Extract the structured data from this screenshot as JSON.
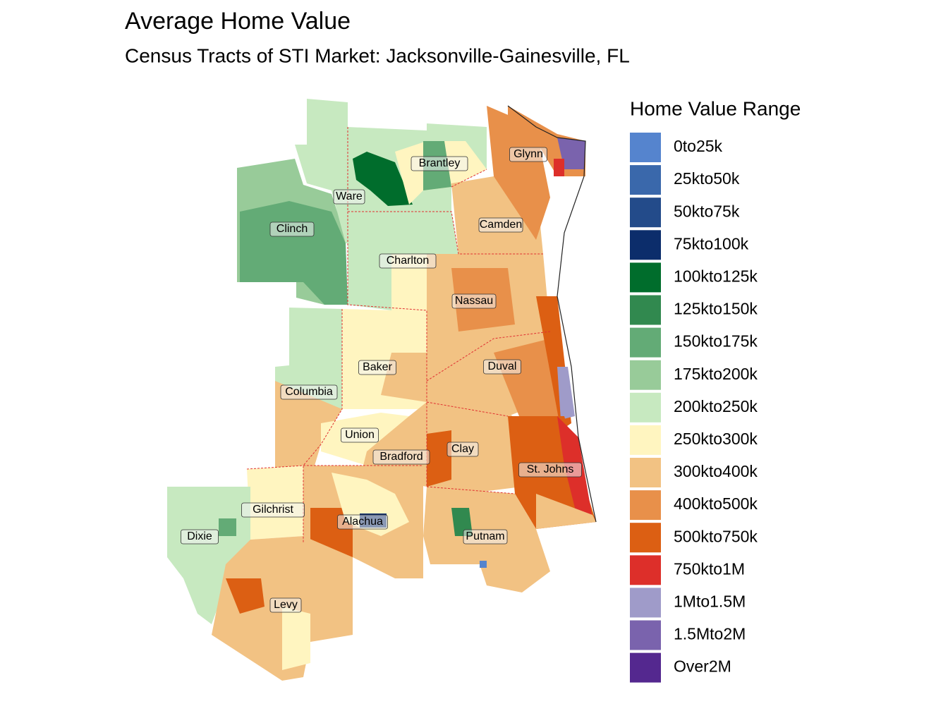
{
  "title": "Average Home Value",
  "subtitle": "Census Tracts of STI Market: Jacksonville-Gainesville, FL",
  "legend": {
    "title": "Home Value Range",
    "items": [
      {
        "label": "0to25k",
        "color": "#5584ce"
      },
      {
        "label": "25kto50k",
        "color": "#3a68ab"
      },
      {
        "label": "50kto75k",
        "color": "#234b8a"
      },
      {
        "label": "75kto100k",
        "color": "#0c2d6b"
      },
      {
        "label": "100kto125k",
        "color": "#006d2c"
      },
      {
        "label": "125kto150k",
        "color": "#31894f"
      },
      {
        "label": "150kto175k",
        "color": "#63ab76"
      },
      {
        "label": "175kto200k",
        "color": "#98cb99"
      },
      {
        "label": "200kto250k",
        "color": "#c7e9c0"
      },
      {
        "label": "250kto300k",
        "color": "#fff5c0"
      },
      {
        "label": "300kto400k",
        "color": "#f2c283"
      },
      {
        "label": "400kto500k",
        "color": "#e8904a"
      },
      {
        "label": "500kto750k",
        "color": "#dc5f13"
      },
      {
        "label": "750kto1M",
        "color": "#dd2f2a"
      },
      {
        "label": "1Mto1.5M",
        "color": "#9f9bc9"
      },
      {
        "label": "1.5Mto2M",
        "color": "#7a63ad"
      },
      {
        "label": "Over2M",
        "color": "#54288f"
      }
    ]
  },
  "counties": [
    {
      "label": "Glynn"
    },
    {
      "label": "Brantley"
    },
    {
      "label": "Ware"
    },
    {
      "label": "Camden"
    },
    {
      "label": "Clinch"
    },
    {
      "label": "Charlton"
    },
    {
      "label": "Nassau"
    },
    {
      "label": "Duval"
    },
    {
      "label": "Baker"
    },
    {
      "label": "Columbia"
    },
    {
      "label": "Union"
    },
    {
      "label": "Clay"
    },
    {
      "label": "Bradford"
    },
    {
      "label": "St. Johns"
    },
    {
      "label": "Gilchrist"
    },
    {
      "label": "Alachua"
    },
    {
      "label": "Putnam"
    },
    {
      "label": "Dixie"
    },
    {
      "label": "Levy"
    }
  ]
}
